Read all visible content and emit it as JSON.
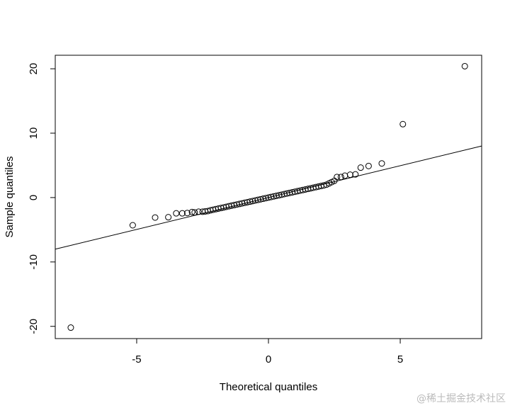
{
  "chart_data": {
    "type": "scatter",
    "xlabel": "Theoretical quantiles",
    "ylabel": "Sample quantiles",
    "watermark": "@稀土掘金技术社区",
    "xlim": [
      -8.09,
      8.09
    ],
    "ylim": [
      -21.9,
      22.1
    ],
    "xticks": [
      -5,
      0,
      5
    ],
    "yticks": [
      -20,
      -10,
      0,
      10,
      20
    ],
    "color": "#000000",
    "reference_line": {
      "intercept": 0,
      "slope": 0.99
    },
    "x": [
      -7.5,
      -5.15,
      -4.3,
      -3.8,
      -3.5,
      -3.27,
      -3.08,
      -2.9,
      -2.8,
      -2.65,
      -2.5,
      -2.4,
      -2.3,
      -2.2,
      -2.1,
      -2.0,
      -1.9,
      -1.8,
      -1.7,
      -1.6,
      -1.5,
      -1.4,
      -1.3,
      -1.2,
      -1.1,
      -1.0,
      -0.9,
      -0.8,
      -0.7,
      -0.6,
      -0.5,
      -0.4,
      -0.3,
      -0.2,
      -0.1,
      0,
      0.1,
      0.2,
      0.3,
      0.4,
      0.5,
      0.6,
      0.7,
      0.8,
      0.9,
      1.0,
      1.1,
      1.2,
      1.3,
      1.4,
      1.5,
      1.6,
      1.7,
      1.8,
      1.9,
      2.0,
      2.1,
      2.2,
      2.3,
      2.4,
      2.5,
      2.6,
      2.75,
      2.9,
      3.1,
      3.3,
      3.5,
      3.8,
      4.3,
      5.1,
      7.45
    ],
    "y": [
      -20.2,
      -4.3,
      -3.1,
      -3.05,
      -2.45,
      -2.45,
      -2.4,
      -2.25,
      -2.3,
      -2.2,
      -2.2,
      -2.15,
      -2.1,
      -1.98,
      -1.89,
      -1.8,
      -1.71,
      -1.62,
      -1.53,
      -1.44,
      -1.35,
      -1.26,
      -1.17,
      -1.08,
      -0.99,
      -0.9,
      -0.81,
      -0.72,
      -0.63,
      -0.54,
      -0.45,
      -0.36,
      -0.27,
      -0.18,
      -0.09,
      0,
      0.09,
      0.18,
      0.27,
      0.36,
      0.45,
      0.54,
      0.63,
      0.72,
      0.81,
      0.9,
      0.99,
      1.08,
      1.17,
      1.26,
      1.35,
      1.44,
      1.53,
      1.62,
      1.71,
      1.8,
      1.89,
      2.0,
      2.2,
      2.4,
      2.6,
      3.2,
      3.2,
      3.4,
      3.55,
      3.6,
      4.65,
      4.9,
      5.3,
      11.4,
      20.4
    ]
  }
}
